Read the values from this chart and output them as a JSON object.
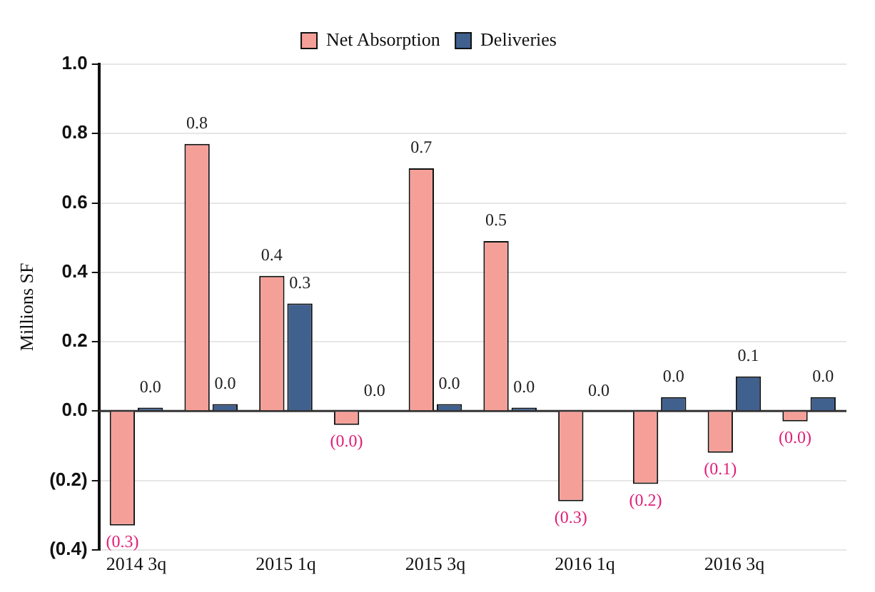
{
  "chart_data": {
    "type": "bar",
    "ylabel": "Millions SF",
    "categories": [
      "2014 3q",
      null,
      "2015 1q",
      null,
      "2015 3q",
      null,
      "2016 1q",
      null,
      "2016 3q",
      null
    ],
    "series": [
      {
        "name": "Net Absorption",
        "color": "#f4a099",
        "values": [
          -0.33,
          0.77,
          0.39,
          -0.04,
          0.7,
          0.49,
          -0.26,
          -0.21,
          -0.12,
          -0.03
        ],
        "value_labels": [
          "(0.3)",
          "0.8",
          "0.4",
          "(0.0)",
          "0.7",
          "0.5",
          "(0.3)",
          "(0.2)",
          "(0.1)",
          "(0.0)"
        ]
      },
      {
        "name": "Deliveries",
        "color": "#40608e",
        "values": [
          0.01,
          0.02,
          0.31,
          0.0,
          0.02,
          0.01,
          0.0,
          0.04,
          0.1,
          0.04
        ],
        "value_labels": [
          "0.0",
          "0.0",
          "0.3",
          "0.0",
          "0.0",
          "0.0",
          "0.0",
          "0.0",
          "0.1",
          "0.0"
        ]
      }
    ],
    "ylim": [
      -0.4,
      1.0
    ],
    "yticks": [
      {
        "value": -0.4,
        "label": "(0.4)"
      },
      {
        "value": -0.2,
        "label": "(0.2)"
      },
      {
        "value": 0,
        "label": "0.0"
      },
      {
        "value": 0.2,
        "label": "0.2"
      },
      {
        "value": 0.4,
        "label": "0.4"
      },
      {
        "value": 0.6,
        "label": "0.6"
      },
      {
        "value": 0.8,
        "label": "0.8"
      },
      {
        "value": 1.0,
        "label": "1.0"
      }
    ],
    "grid": "y",
    "legend": "top"
  }
}
